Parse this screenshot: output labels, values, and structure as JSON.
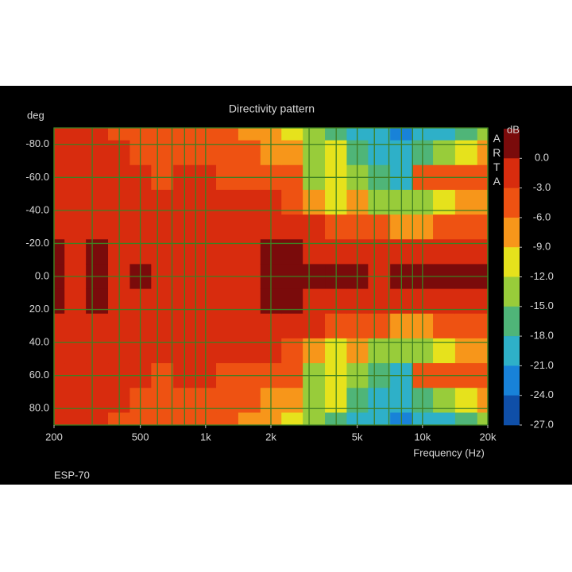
{
  "chart_data": {
    "type": "heatmap",
    "title": "Directivity pattern",
    "y_label": "deg",
    "x_label": "Frequency (Hz)",
    "colorbar_label": "dB",
    "watermark": "ARTA",
    "footer": "ESP-70",
    "log_x": true,
    "xlim": [
      200,
      20000
    ],
    "ylim": [
      -90,
      90
    ],
    "xticks": [
      200,
      500,
      {
        "value": 1000,
        "label": "1k"
      },
      {
        "value": 2000,
        "label": "2k"
      },
      {
        "value": 5000,
        "label": "5k"
      },
      {
        "value": 10000,
        "label": "10k"
      },
      {
        "value": 20000,
        "label": "20k"
      }
    ],
    "xgrid": [
      200,
      300,
      400,
      500,
      600,
      700,
      800,
      900,
      1000,
      2000,
      3000,
      4000,
      5000,
      6000,
      7000,
      8000,
      9000,
      10000,
      20000
    ],
    "yticks": [
      {
        "value": -80,
        "label": "-80.0"
      },
      {
        "value": -60,
        "label": "-60.0"
      },
      {
        "value": -40,
        "label": "-40.0"
      },
      {
        "value": -20,
        "label": "-20.0"
      },
      {
        "value": 0,
        "label": "0.0"
      },
      {
        "value": 20,
        "label": "20.0"
      },
      {
        "value": 40,
        "label": "40.0"
      },
      {
        "value": 60,
        "label": "60.0"
      },
      {
        "value": 80,
        "label": "80.0"
      }
    ],
    "grid_color": "#3f7f22",
    "zlim": [
      3,
      -27
    ],
    "zticks": [
      {
        "value": 0,
        "label": "0.0"
      },
      {
        "value": -3,
        "label": "-3.0"
      },
      {
        "value": -6,
        "label": "-6.0"
      },
      {
        "value": -9,
        "label": "-9.0"
      },
      {
        "value": -12,
        "label": "-12.0"
      },
      {
        "value": -15,
        "label": "-15.0"
      },
      {
        "value": -18,
        "label": "-18.0"
      },
      {
        "value": -21,
        "label": "-21.0"
      },
      {
        "value": -24,
        "label": "-24.0"
      },
      {
        "value": -27,
        "label": "-27.0"
      }
    ],
    "colors": [
      "#7a0b0b",
      "#d82c0e",
      "#ee5212",
      "#f7961a",
      "#e6e21c",
      "#98cc3a",
      "#4fb578",
      "#2eb0c8",
      "#1882d8",
      "#0f4fa8"
    ],
    "x": [
      200,
      250,
      315,
      400,
      500,
      630,
      800,
      1000,
      1250,
      1600,
      2000,
      2500,
      3150,
      4000,
      5000,
      6300,
      8000,
      10000,
      12500,
      16000,
      20000
    ],
    "y": [
      -90,
      -75,
      -60,
      -45,
      -30,
      -15,
      0,
      15,
      30,
      45,
      60,
      75,
      90
    ],
    "z": [
      [
        -2,
        -2,
        -2,
        -1.5,
        -1,
        0.5,
        1,
        0.5,
        -1,
        -1.5,
        -2,
        -2,
        -2
      ],
      [
        -2,
        -2,
        -2,
        -2,
        -1.5,
        -1,
        -1,
        -1,
        -1.5,
        -2,
        -2,
        -2,
        -2
      ],
      [
        -2.5,
        -2,
        -2,
        -1.5,
        -1,
        1,
        1.5,
        1,
        -1,
        -1.5,
        -2,
        -2,
        -2.5
      ],
      [
        -3.5,
        -2.5,
        -2,
        -2,
        -1.5,
        -1,
        -1,
        -1,
        -1.5,
        -2,
        -2,
        -2.5,
        -3.5
      ],
      [
        -4,
        -3.5,
        -2.5,
        -2,
        -1.5,
        -1,
        1,
        -1,
        -1.5,
        -2,
        -2.5,
        -3.5,
        -4
      ],
      [
        -4.5,
        -4,
        -3,
        -2,
        -1.5,
        -1,
        -0.5,
        -1,
        -1.5,
        -2,
        -3,
        -4,
        -4.5
      ],
      [
        -4.5,
        -3.5,
        -2.5,
        -2,
        -1.5,
        -1,
        -0.5,
        -1,
        -1.5,
        -2,
        -2.5,
        -3.5,
        -4.5
      ],
      [
        -5,
        -3.5,
        -2.5,
        -2,
        -1.5,
        -1,
        -0.5,
        -1,
        -1.5,
        -2,
        -2.5,
        -3.5,
        -5
      ],
      [
        -5.5,
        -4,
        -3,
        -2,
        -1.5,
        -1,
        -0.5,
        -1,
        -1.5,
        -2,
        -3,
        -4,
        -5.5
      ],
      [
        -6.5,
        -5,
        -3.5,
        -2.5,
        -1.5,
        -1,
        -0.5,
        -1,
        -1.5,
        -2.5,
        -3.5,
        -5,
        -6.5
      ],
      [
        -8,
        -6,
        -3.5,
        -2,
        -1,
        1,
        1.5,
        1,
        -1,
        -2,
        -3.5,
        -6,
        -8
      ],
      [
        -10,
        -8,
        -5,
        -3,
        -2,
        0.5,
        1,
        0.5,
        -2,
        -3,
        -5,
        -8,
        -10
      ],
      [
        -14,
        -14,
        -12,
        -8,
        -2.5,
        -1,
        1,
        -1,
        -2.5,
        -8,
        -12,
        -14,
        -14
      ],
      [
        -16,
        -11,
        -9,
        -10,
        -4,
        -1,
        1,
        -1,
        -4,
        -10,
        -9,
        -11,
        -16
      ],
      [
        -19,
        -17,
        -14,
        -8,
        -3,
        -1,
        1,
        -1,
        -3,
        -8,
        -14,
        -17,
        -19
      ],
      [
        -20,
        -19,
        -16,
        -12,
        -5,
        -2,
        -1,
        -2,
        -5,
        -12,
        -16,
        -19,
        -20
      ],
      [
        -22,
        -20,
        -18,
        -13,
        -7,
        -1,
        1,
        -1,
        -7,
        -13,
        -18,
        -20,
        -22
      ],
      [
        -19,
        -16,
        -5,
        -14,
        -7,
        -1,
        1.5,
        -1,
        -7,
        -14,
        -5,
        -16,
        -19
      ],
      [
        -18,
        -14,
        -4,
        -9,
        -5,
        -1,
        1.5,
        -1,
        -5,
        -9,
        -4,
        -14,
        -18
      ],
      [
        -17,
        -10,
        -5,
        -8,
        -4,
        -1,
        1,
        -1,
        -4,
        -8,
        -5,
        -10,
        -17
      ],
      [
        -12,
        -8,
        -5,
        -8,
        -4,
        -1,
        1.5,
        -1,
        -4,
        -8,
        -5,
        -8,
        -12
      ]
    ]
  }
}
